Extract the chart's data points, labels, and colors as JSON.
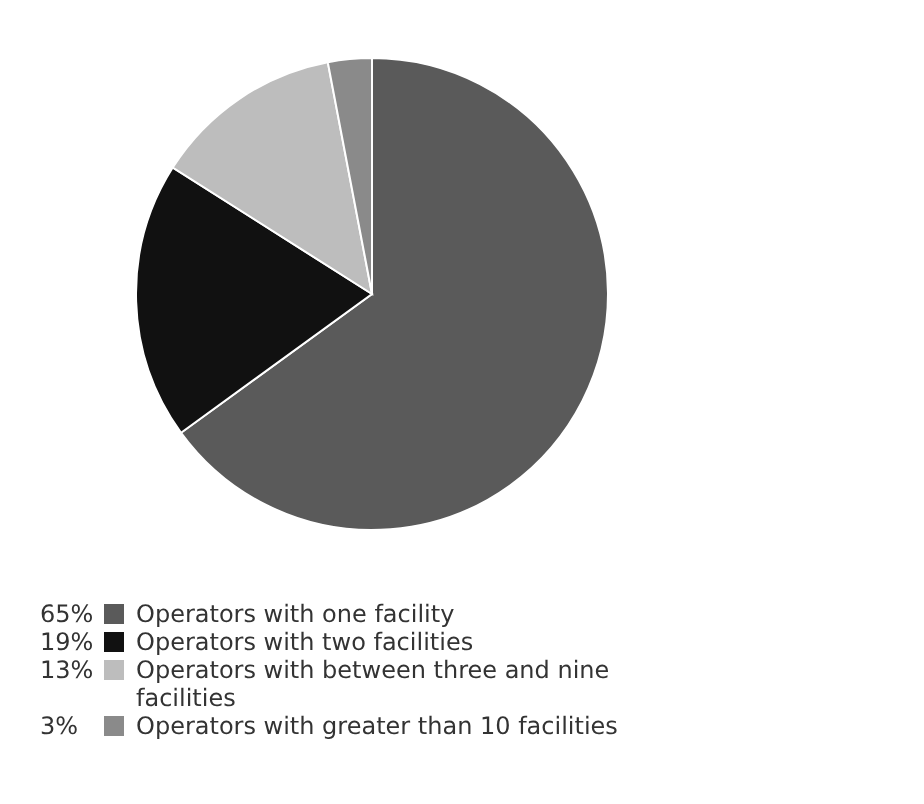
{
  "chart_data": {
    "type": "pie",
    "categories": [
      "Operators with one facility",
      "Operators with two facilities",
      "Operators with between three and nine facilities",
      "Operators with greater than 10 facilities"
    ],
    "values": [
      65,
      19,
      13,
      3
    ],
    "value_labels": [
      "65%",
      "19%",
      "13%",
      "3%"
    ],
    "colors": [
      "#5a5a5a",
      "#111111",
      "#bdbdbd",
      "#8a8a8a"
    ],
    "legend": "bottom"
  }
}
